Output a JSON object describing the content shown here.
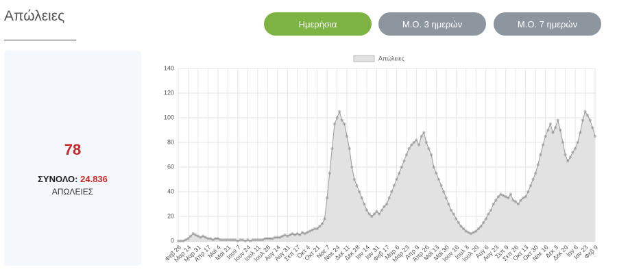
{
  "header": {
    "title": "Απώλειες"
  },
  "buttons": [
    "Ημερήσια",
    "Μ.Ο. 3 ημερών",
    "Μ.Ο. 7 ημερών"
  ],
  "summary": {
    "value": 78,
    "total_label": "ΣΥΝΟΛΟ:",
    "total": "24.836",
    "caption": "ΑΠΩΛΕΙΕΣ"
  },
  "chart_data": {
    "type": "area",
    "color": "#999999",
    "fill": "#e2e2e2",
    "grid": true,
    "legend": "top",
    "ylim": [
      0,
      140
    ],
    "yticks": [
      0,
      20,
      40,
      60,
      80,
      100,
      120,
      140
    ],
    "categories": [
      "Φεβ 26",
      null,
      null,
      null,
      "Μαρ 14",
      null,
      null,
      null,
      "Μαρ 31",
      null,
      null,
      null,
      "Απρ 17",
      null,
      null,
      null,
      "Μαϊ 4",
      null,
      null,
      null,
      "Μαϊ 21",
      null,
      null,
      null,
      "Ιουν 7",
      null,
      null,
      null,
      "Ιουν 24",
      null,
      null,
      null,
      "Ιουλ 11",
      null,
      null,
      null,
      "Ιουλ 28",
      null,
      null,
      null,
      "Αυγ 14",
      null,
      null,
      null,
      "Αυγ 31",
      null,
      null,
      null,
      "Σεπ 17",
      null,
      null,
      null,
      "Οκτ 4",
      null,
      null,
      null,
      "Οκτ 21",
      null,
      null,
      null,
      "Νοε 7",
      null,
      null,
      null,
      "Νοε 24",
      null,
      null,
      null,
      "Δεκ 11",
      null,
      null,
      null,
      "Δεκ 28",
      null,
      null,
      null,
      "Ιαν 14",
      null,
      null,
      null,
      "Ιαν 31",
      null,
      null,
      null,
      "Φεβ 17",
      null,
      null,
      null,
      "Μαρ 6",
      null,
      null,
      null,
      "Μαρ 23",
      null,
      null,
      null,
      "Απρ 9",
      null,
      null,
      null,
      "Απρ 26",
      null,
      null,
      null,
      "Μαϊ 13",
      null,
      null,
      null,
      "Μαϊ 30",
      null,
      null,
      null,
      "Ιουν 16",
      null,
      null,
      null,
      "Ιουλ 3",
      null,
      null,
      null,
      "Ιουλ 20",
      null,
      null,
      null,
      "Αυγ 6",
      null,
      null,
      null,
      "Αυγ 23",
      null,
      null,
      null,
      "Σεπ 9",
      null,
      null,
      null,
      "Σεπ 26",
      null,
      null,
      null,
      "Οκτ 13",
      null,
      null,
      null,
      "Οκτ 30",
      null,
      null,
      null,
      "Νοε 16",
      null,
      null,
      null,
      "Δεκ 3",
      null,
      null,
      null,
      "Δεκ 20",
      null,
      null,
      null,
      "Ιαν 6",
      null,
      null,
      null,
      "Ιαν 23",
      null,
      null,
      null,
      "Φεβ 9"
    ],
    "series": [
      {
        "name": "Απώλειες",
        "color": "#999999",
        "values": [
          0,
          0,
          0,
          1,
          2,
          4,
          6,
          5,
          4,
          3,
          4,
          3,
          2,
          2,
          1,
          2,
          2,
          1,
          1,
          1,
          1,
          1,
          1,
          1,
          0,
          1,
          1,
          0,
          1,
          0,
          1,
          1,
          1,
          1,
          1,
          2,
          2,
          2,
          2,
          3,
          3,
          3,
          4,
          5,
          4,
          5,
          6,
          5,
          6,
          5,
          7,
          6,
          7,
          8,
          9,
          10,
          10,
          12,
          14,
          18,
          35,
          55,
          75,
          95,
          100,
          105,
          98,
          95,
          85,
          75,
          60,
          50,
          45,
          40,
          35,
          30,
          25,
          22,
          20,
          22,
          24,
          22,
          25,
          28,
          30,
          35,
          40,
          45,
          50,
          55,
          60,
          65,
          70,
          75,
          78,
          80,
          82,
          78,
          85,
          88,
          80,
          75,
          70,
          60,
          55,
          50,
          45,
          40,
          35,
          30,
          25,
          22,
          18,
          15,
          12,
          10,
          8,
          7,
          6,
          7,
          8,
          10,
          12,
          15,
          18,
          22,
          25,
          30,
          33,
          36,
          38,
          37,
          36,
          35,
          38,
          33,
          32,
          30,
          33,
          35,
          36,
          40,
          45,
          50,
          55,
          62,
          70,
          78,
          85,
          90,
          95,
          88,
          92,
          98,
          90,
          80,
          70,
          65,
          68,
          72,
          75,
          80,
          88,
          98,
          105,
          102,
          98,
          92,
          85
        ]
      }
    ]
  }
}
